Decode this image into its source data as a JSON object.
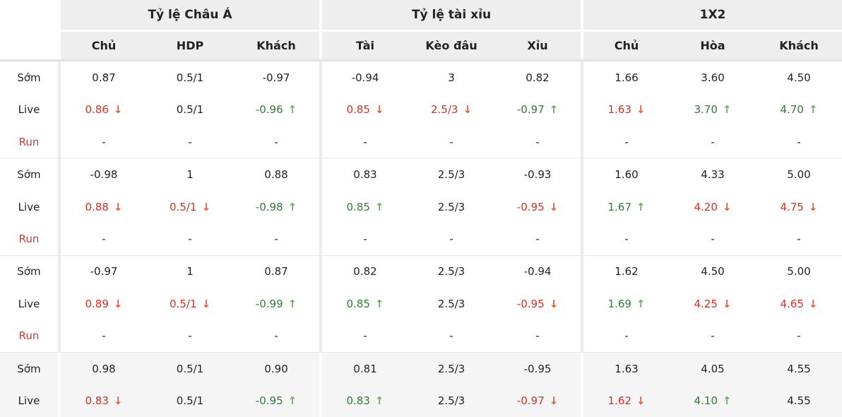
{
  "colors": {
    "red": "#dd2f1f",
    "red_arrow": "#f0582b",
    "green": "#2e7d32",
    "green_arrow": "#67b357",
    "run_label": "#c0423c",
    "header_bg": "#eeeeee",
    "shaded_row_bg": "#f5f5f5",
    "text": "#222222"
  },
  "header": {
    "groups": [
      {
        "title": "Tỷ lệ Châu Á",
        "cols": [
          "Chủ",
          "HDP",
          "Khách"
        ]
      },
      {
        "title": "Tỷ lệ tài xỉu",
        "cols": [
          "Tài",
          "Kèo đâu",
          "Xỉu"
        ]
      },
      {
        "title": "1X2",
        "cols": [
          "Chủ",
          "Hòa",
          "Khách"
        ]
      }
    ]
  },
  "row_labels": {
    "early": "Sớm",
    "live": "Live",
    "run": "Run"
  },
  "rows": [
    {
      "label": "Sớm",
      "run": false,
      "shaded": false,
      "group_start": false,
      "cells": [
        {
          "t": "0.87"
        },
        {
          "t": "0.5/1"
        },
        {
          "t": "-0.97"
        },
        {
          "t": "-0.94"
        },
        {
          "t": "3"
        },
        {
          "t": "0.82"
        },
        {
          "t": "1.66"
        },
        {
          "t": "3.60"
        },
        {
          "t": "4.50"
        }
      ]
    },
    {
      "label": "Live",
      "run": false,
      "shaded": false,
      "group_start": false,
      "cells": [
        {
          "t": "0.86",
          "c": "red",
          "a": "down"
        },
        {
          "t": "0.5/1"
        },
        {
          "t": "-0.96",
          "c": "green",
          "a": "up"
        },
        {
          "t": "0.85",
          "c": "red",
          "a": "down"
        },
        {
          "t": "2.5/3",
          "c": "red",
          "a": "down"
        },
        {
          "t": "-0.97",
          "c": "green",
          "a": "up"
        },
        {
          "t": "1.63",
          "c": "red",
          "a": "down"
        },
        {
          "t": "3.70",
          "c": "green",
          "a": "up"
        },
        {
          "t": "4.70",
          "c": "green",
          "a": "up"
        }
      ]
    },
    {
      "label": "Run",
      "run": true,
      "shaded": false,
      "group_start": false,
      "cells": [
        {
          "t": "-"
        },
        {
          "t": "-"
        },
        {
          "t": "-"
        },
        {
          "t": "-"
        },
        {
          "t": "-"
        },
        {
          "t": "-"
        },
        {
          "t": "-"
        },
        {
          "t": "-"
        },
        {
          "t": "-"
        }
      ]
    },
    {
      "label": "Sớm",
      "run": false,
      "shaded": false,
      "group_start": true,
      "cells": [
        {
          "t": "-0.98"
        },
        {
          "t": "1"
        },
        {
          "t": "0.88"
        },
        {
          "t": "0.83"
        },
        {
          "t": "2.5/3"
        },
        {
          "t": "-0.93"
        },
        {
          "t": "1.60"
        },
        {
          "t": "4.33"
        },
        {
          "t": "5.00"
        }
      ]
    },
    {
      "label": "Live",
      "run": false,
      "shaded": false,
      "group_start": false,
      "cells": [
        {
          "t": "0.88",
          "c": "red",
          "a": "down"
        },
        {
          "t": "0.5/1",
          "c": "red",
          "a": "down"
        },
        {
          "t": "-0.98",
          "c": "green",
          "a": "up"
        },
        {
          "t": "0.85",
          "c": "green",
          "a": "up"
        },
        {
          "t": "2.5/3"
        },
        {
          "t": "-0.95",
          "c": "red",
          "a": "down"
        },
        {
          "t": "1.67",
          "c": "green",
          "a": "up"
        },
        {
          "t": "4.20",
          "c": "red",
          "a": "down"
        },
        {
          "t": "4.75",
          "c": "red",
          "a": "down"
        }
      ]
    },
    {
      "label": "Run",
      "run": true,
      "shaded": false,
      "group_start": false,
      "cells": [
        {
          "t": "-"
        },
        {
          "t": "-"
        },
        {
          "t": "-"
        },
        {
          "t": "-"
        },
        {
          "t": "-"
        },
        {
          "t": "-"
        },
        {
          "t": "-"
        },
        {
          "t": "-"
        },
        {
          "t": "-"
        }
      ]
    },
    {
      "label": "Sớm",
      "run": false,
      "shaded": false,
      "group_start": true,
      "cells": [
        {
          "t": "-0.97"
        },
        {
          "t": "1"
        },
        {
          "t": "0.87"
        },
        {
          "t": "0.82"
        },
        {
          "t": "2.5/3"
        },
        {
          "t": "-0.94"
        },
        {
          "t": "1.62"
        },
        {
          "t": "4.50"
        },
        {
          "t": "5.00"
        }
      ]
    },
    {
      "label": "Live",
      "run": false,
      "shaded": false,
      "group_start": false,
      "cells": [
        {
          "t": "0.89",
          "c": "red",
          "a": "down"
        },
        {
          "t": "0.5/1",
          "c": "red",
          "a": "down"
        },
        {
          "t": "-0.99",
          "c": "green",
          "a": "up"
        },
        {
          "t": "0.85",
          "c": "green",
          "a": "up"
        },
        {
          "t": "2.5/3"
        },
        {
          "t": "-0.95",
          "c": "red",
          "a": "down"
        },
        {
          "t": "1.69",
          "c": "green",
          "a": "up"
        },
        {
          "t": "4.25",
          "c": "red",
          "a": "down"
        },
        {
          "t": "4.65",
          "c": "red",
          "a": "down"
        }
      ]
    },
    {
      "label": "Run",
      "run": true,
      "shaded": false,
      "group_start": false,
      "cells": [
        {
          "t": "-"
        },
        {
          "t": "-"
        },
        {
          "t": "-"
        },
        {
          "t": "-"
        },
        {
          "t": "-"
        },
        {
          "t": "-"
        },
        {
          "t": "-"
        },
        {
          "t": "-"
        },
        {
          "t": "-"
        }
      ]
    },
    {
      "label": "Sớm",
      "run": false,
      "shaded": true,
      "group_start": true,
      "cells": [
        {
          "t": "0.98"
        },
        {
          "t": "0.5/1"
        },
        {
          "t": "0.90"
        },
        {
          "t": "0.81"
        },
        {
          "t": "2.5/3"
        },
        {
          "t": "-0.95"
        },
        {
          "t": "1.63"
        },
        {
          "t": "4.05"
        },
        {
          "t": "4.55"
        }
      ]
    },
    {
      "label": "Live",
      "run": false,
      "shaded": true,
      "group_start": false,
      "cells": [
        {
          "t": "0.83",
          "c": "red",
          "a": "down"
        },
        {
          "t": "0.5/1"
        },
        {
          "t": "-0.95",
          "c": "green",
          "a": "up"
        },
        {
          "t": "0.83",
          "c": "green",
          "a": "up"
        },
        {
          "t": "2.5/3"
        },
        {
          "t": "-0.97",
          "c": "red",
          "a": "down"
        },
        {
          "t": "1.62",
          "c": "red",
          "a": "down"
        },
        {
          "t": "4.10",
          "c": "green",
          "a": "up"
        },
        {
          "t": "4.55"
        }
      ]
    }
  ]
}
